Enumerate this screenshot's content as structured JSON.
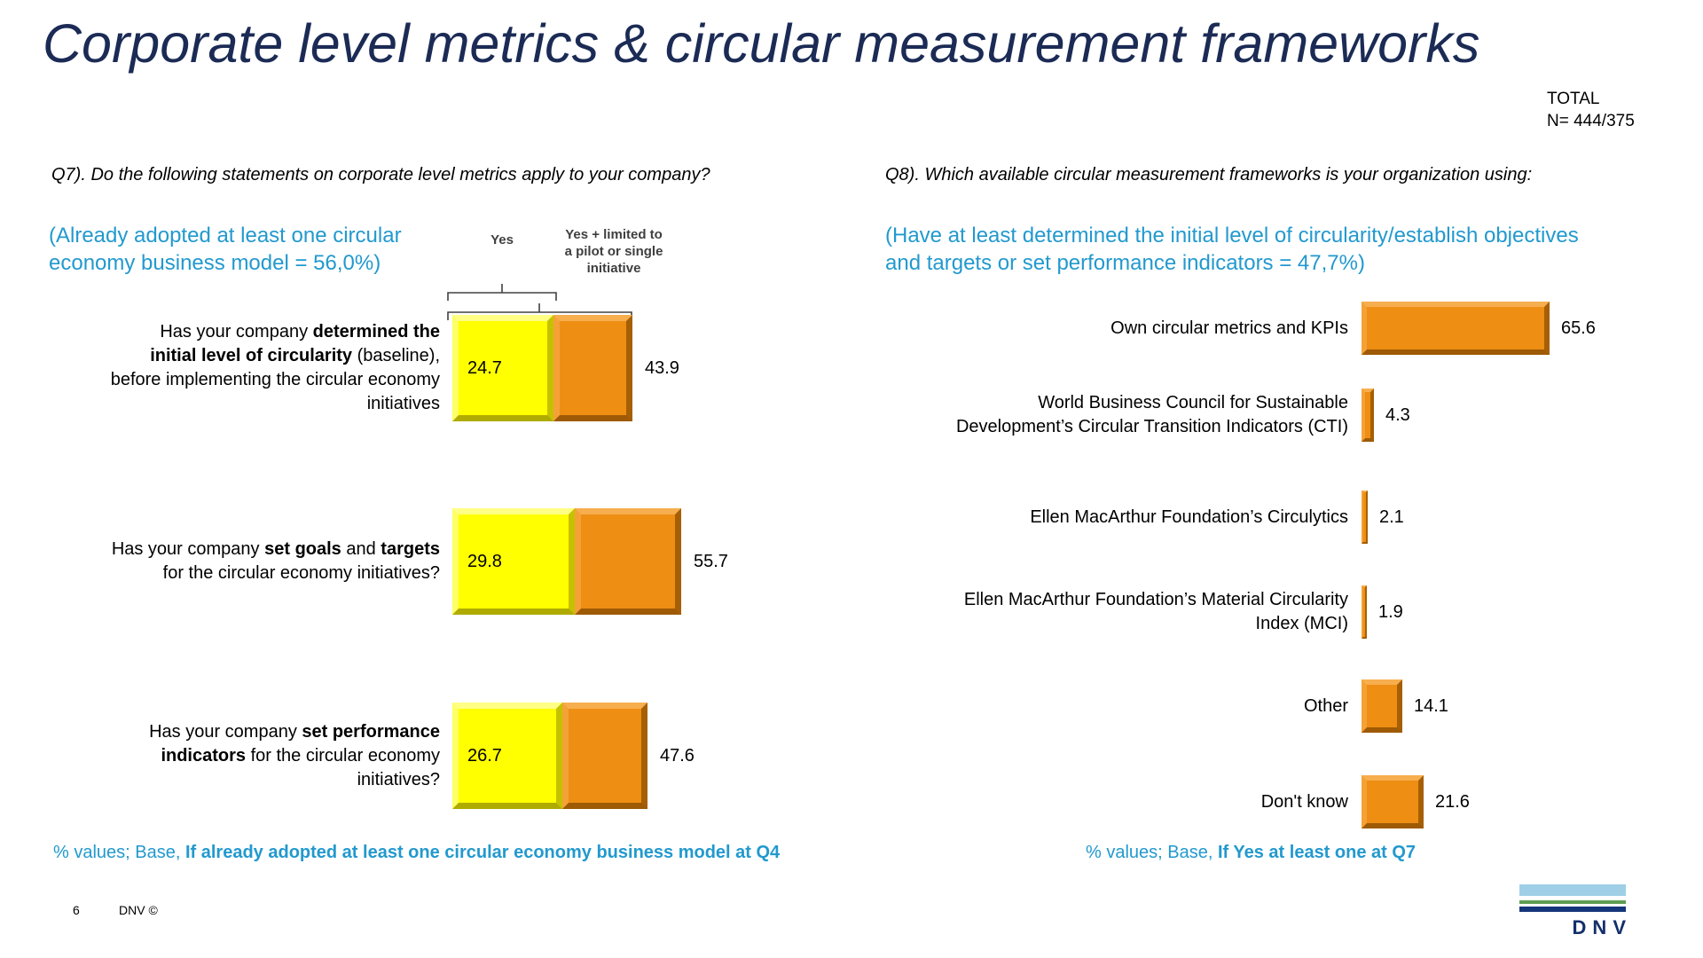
{
  "slide": {
    "title": "Corporate level metrics & circular measurement frameworks",
    "total_label": "TOTAL",
    "total_value": "N= 444/375",
    "page_number": "6",
    "copyright": "DNV ©",
    "logo_text": "DNV"
  },
  "colors": {
    "title_navy": "#1b2b55",
    "accent_blue": "#2299ce",
    "bar_yellow": "#ffff00",
    "bar_orange": "#ee8e13",
    "logo_lightblue": "#9fcfe6",
    "logo_green": "#5f9e52",
    "logo_navy": "#15357a"
  },
  "q7": {
    "question": "Q7). Do the following statements on corporate level metrics apply to your company?",
    "subtitle_lines": [
      "(Already adopted at least one circular",
      "economy business model = 56,0%)"
    ],
    "legend": {
      "yes": "Yes",
      "yes_limited_lines": [
        "Yes + limited to",
        "a pilot or single",
        "initiative"
      ]
    },
    "rows": [
      {
        "label_lines": [
          [
            {
              "t": "Has your company ",
              "b": 0
            },
            {
              "t": "determined the",
              "b": 1
            }
          ],
          [
            {
              "t": "initial level of circularity",
              "b": 1
            },
            {
              "t": " (baseline),",
              "b": 0
            }
          ],
          [
            {
              "t": "before implementing the circular economy",
              "b": 0
            }
          ],
          [
            {
              "t": "initiatives",
              "b": 0
            }
          ]
        ],
        "yes": 24.7,
        "total": 43.9
      },
      {
        "label_lines": [
          [
            {
              "t": "Has your company ",
              "b": 0
            },
            {
              "t": "set goals",
              "b": 1
            },
            {
              "t": " and ",
              "b": 0
            },
            {
              "t": "targets",
              "b": 1
            }
          ],
          [
            {
              "t": "for the circular economy initiatives?",
              "b": 0
            }
          ]
        ],
        "yes": 29.8,
        "total": 55.7
      },
      {
        "label_lines": [
          [
            {
              "t": "Has your company ",
              "b": 0
            },
            {
              "t": "set performance",
              "b": 1
            }
          ],
          [
            {
              "t": "indicators",
              "b": 1
            },
            {
              "t": " for the circular economy",
              "b": 0
            }
          ],
          [
            {
              "t": "initiatives?",
              "b": 0
            }
          ]
        ],
        "yes": 26.7,
        "total": 47.6
      }
    ],
    "footnote": {
      "prefix": "% values; Base, ",
      "bold": "If already adopted at least one circular economy business model at Q4"
    }
  },
  "q8": {
    "question": "Q8). Which available circular measurement frameworks is your organization using:",
    "subtitle_lines": [
      "(Have at least determined the initial level of circularity/establish objectives",
      "and targets or set performance indicators = 47,7%)"
    ],
    "rows": [
      {
        "label_lines": [
          "Own circular metrics and KPIs"
        ],
        "value": 65.6
      },
      {
        "label_lines": [
          "World Business Council for Sustainable",
          "Development’s Circular Transition Indicators (CTI)"
        ],
        "value": 4.3
      },
      {
        "label_lines": [
          "Ellen MacArthur Foundation’s Circulytics"
        ],
        "value": 2.1
      },
      {
        "label_lines": [
          "Ellen MacArthur Foundation’s Material Circularity",
          "Index (MCI)"
        ],
        "value": 1.9
      },
      {
        "label_lines": [
          "Other"
        ],
        "value": 14.1
      },
      {
        "label_lines": [
          "Don't know"
        ],
        "value": 21.6
      }
    ],
    "footnote": {
      "prefix": "% values; Base, ",
      "bold": "If Yes at least one at Q7"
    }
  },
  "chart_data": [
    {
      "type": "bar",
      "orientation": "horizontal",
      "stacked": true,
      "title": "Q7). Do the following statements on corporate level metrics apply to your company?",
      "subtitle": "(Already adopted at least one circular economy business model = 56,0%)",
      "categories": [
        "Has your company determined the initial level of circularity (baseline), before implementing the circular economy initiatives",
        "Has your company set goals and targets for the circular economy initiatives?",
        "Has your company set performance indicators for the circular economy initiatives?"
      ],
      "series": [
        {
          "name": "Yes",
          "color": "#ffff00",
          "values": [
            24.7,
            29.8,
            26.7
          ]
        },
        {
          "name": "Yes + limited to a pilot or single initiative",
          "color": "#ee8e13",
          "values": [
            43.9,
            55.7,
            47.6
          ],
          "values_are": "cumulative_total"
        }
      ],
      "xlim": [
        0,
        100
      ],
      "grid": false,
      "value_labels": true,
      "footnote": "% values; Base, If already adopted at least one circular economy business model at Q4"
    },
    {
      "type": "bar",
      "orientation": "horizontal",
      "stacked": false,
      "title": "Q8). Which available circular measurement frameworks is your organization using:",
      "subtitle": "(Have at least determined the initial level of circularity/establish objectives and targets or set performance indicators = 47,7%)",
      "categories": [
        "Own circular metrics and KPIs",
        "World Business Council for Sustainable Development’s Circular Transition Indicators (CTI)",
        "Ellen MacArthur Foundation’s Circulytics",
        "Ellen MacArthur Foundation’s Material Circularity Index (MCI)",
        "Other",
        "Don't know"
      ],
      "values": [
        65.6,
        4.3,
        2.1,
        1.9,
        14.1,
        21.6
      ],
      "color": "#ee8e13",
      "xlim": [
        0,
        100
      ],
      "grid": false,
      "value_labels": true,
      "footnote": "% values; Base, If Yes at least one at Q7"
    }
  ]
}
